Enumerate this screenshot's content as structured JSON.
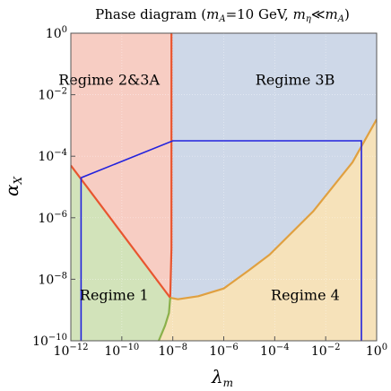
{
  "chart_data": {
    "type": "area",
    "title": "Phase diagram (m_A=10 GeV, m_η≪m_A)",
    "xlabel": "λ_m",
    "ylabel": "α_X",
    "x_scale": "log",
    "y_scale": "log",
    "xlim_log10": [
      -12,
      0
    ],
    "ylim_log10": [
      -10,
      0
    ],
    "x_ticks": [
      {
        "value": -12,
        "label": "−12"
      },
      {
        "value": -10,
        "label": "−10"
      },
      {
        "value": -8,
        "label": "−8"
      },
      {
        "value": -6,
        "label": "−6"
      },
      {
        "value": -4,
        "label": "−4"
      },
      {
        "value": -2,
        "label": "−2"
      },
      {
        "value": 0,
        "label": "0"
      }
    ],
    "y_ticks": [
      {
        "value": 0,
        "label": "0"
      },
      {
        "value": -2,
        "label": "−2"
      },
      {
        "value": -4,
        "label": "−4"
      },
      {
        "value": -6,
        "label": "−6"
      },
      {
        "value": -8,
        "label": "−8"
      },
      {
        "value": -10,
        "label": "−10"
      }
    ],
    "regions": [
      {
        "name": "Regime 1",
        "color": "#cde0b3",
        "polygon": [
          [
            -12,
            -10
          ],
          [
            -12,
            -4.3
          ],
          [
            -8.1,
            -8.6
          ],
          [
            -8.15,
            -9.1
          ],
          [
            -8.3,
            -9.5
          ],
          [
            -8.55,
            -10
          ]
        ],
        "label_pos": [
          -10.3,
          -8.5
        ]
      },
      {
        "name": "Regime 2&3A",
        "color": "#f6c8bc",
        "polygon": [
          [
            -12,
            0
          ],
          [
            -8.05,
            0
          ],
          [
            -8.05,
            -7.0
          ],
          [
            -8.1,
            -8.6
          ],
          [
            -12,
            -4.3
          ]
        ],
        "label_pos": [
          -10.5,
          -1.5
        ]
      },
      {
        "name": "Regime 3B",
        "color": "#c9d4e6",
        "polygon": [
          [
            -8.05,
            0
          ],
          [
            0,
            0
          ],
          [
            0,
            -2.8
          ],
          [
            -0.95,
            -4.2
          ],
          [
            -2.5,
            -5.8
          ],
          [
            -4.2,
            -7.2
          ],
          [
            -5.0,
            -7.7
          ],
          [
            -6.0,
            -8.3
          ],
          [
            -7.0,
            -8.55
          ],
          [
            -7.8,
            -8.65
          ],
          [
            -8.1,
            -8.6
          ],
          [
            -8.05,
            -7.0
          ]
        ],
        "label_pos": [
          -3.2,
          -1.5
        ]
      },
      {
        "name": "Regime 4",
        "color": "#f5dfb3",
        "polygon": [
          [
            -8.55,
            -10
          ],
          [
            -8.3,
            -9.5
          ],
          [
            -8.15,
            -9.1
          ],
          [
            -8.1,
            -8.6
          ],
          [
            -7.8,
            -8.65
          ],
          [
            -7.0,
            -8.55
          ],
          [
            -6.0,
            -8.3
          ],
          [
            -5.0,
            -7.7
          ],
          [
            -4.2,
            -7.2
          ],
          [
            -2.5,
            -5.8
          ],
          [
            -0.95,
            -4.2
          ],
          [
            0,
            -2.8
          ],
          [
            0,
            -10
          ]
        ],
        "label_pos": [
          -2.8,
          -8.5
        ]
      }
    ],
    "boundaries": [
      {
        "color": "#e8552f",
        "points": [
          [
            -12,
            -4.3
          ],
          [
            -8.1,
            -8.6
          ]
        ]
      },
      {
        "color": "#e8552f",
        "points": [
          [
            -8.05,
            0
          ],
          [
            -8.05,
            -7.0
          ],
          [
            -8.1,
            -8.6
          ]
        ]
      },
      {
        "color": "#e0a040",
        "points": [
          [
            -8.1,
            -8.6
          ],
          [
            -7.8,
            -8.65
          ],
          [
            -7.0,
            -8.55
          ],
          [
            -6.0,
            -8.3
          ],
          [
            -5.0,
            -7.7
          ],
          [
            -4.2,
            -7.2
          ],
          [
            -2.5,
            -5.8
          ],
          [
            -0.95,
            -4.2
          ],
          [
            0,
            -2.8
          ]
        ]
      },
      {
        "color": "#8ab04a",
        "points": [
          [
            -8.1,
            -8.6
          ],
          [
            -8.15,
            -9.1
          ],
          [
            -8.3,
            -9.5
          ],
          [
            -8.55,
            -10
          ]
        ]
      }
    ],
    "blue_outline": {
      "color": "#2222dd",
      "points": [
        [
          -11.6,
          -10
        ],
        [
          -11.6,
          -4.7
        ],
        [
          -8.0,
          -3.5
        ],
        [
          -0.6,
          -3.5
        ],
        [
          -0.6,
          -10
        ]
      ]
    }
  }
}
